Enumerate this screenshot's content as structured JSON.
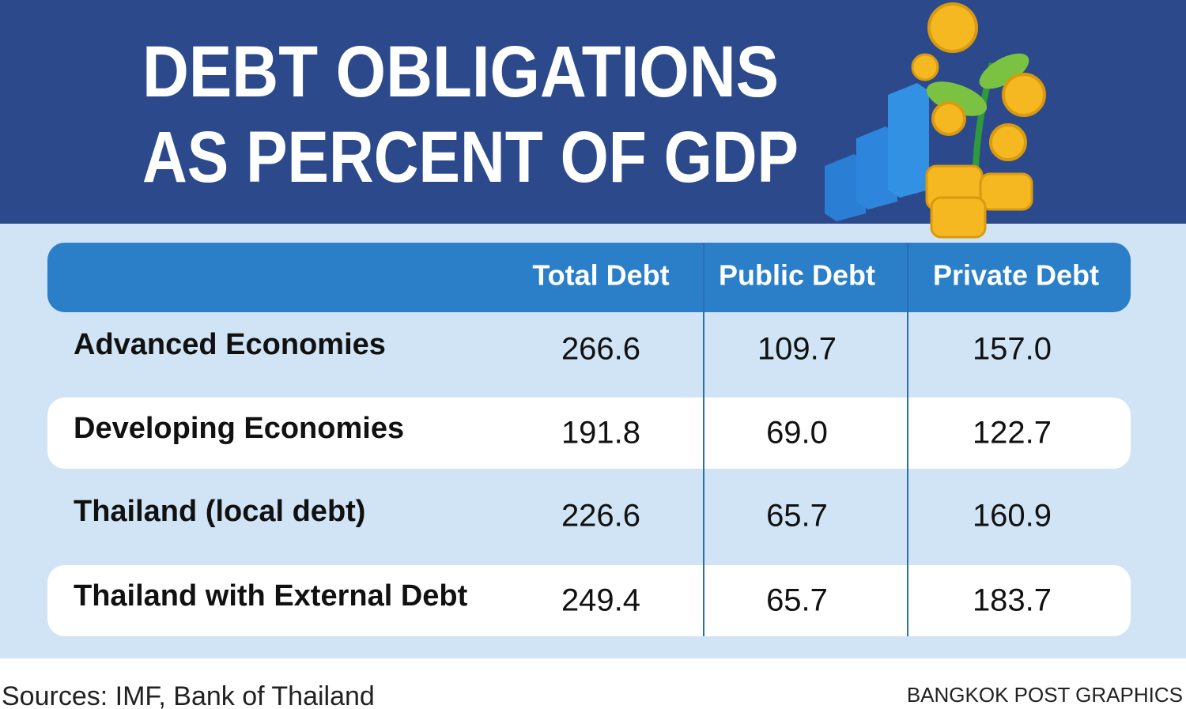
{
  "header": {
    "title_lines": [
      "DEBT OBLIGATIONS",
      "AS PERCENT OF GDP"
    ]
  },
  "table": {
    "columns": [
      "Total Debt",
      "Public Debt",
      "Private Debt"
    ],
    "rows": [
      {
        "label": "Advanced Economies",
        "cells": [
          "266.6",
          "109.7",
          "157.0"
        ]
      },
      {
        "label": "Developing Economies",
        "cells": [
          "191.8",
          "69.0",
          "122.7"
        ]
      },
      {
        "label": "Thailand (local debt)",
        "cells": [
          "226.6",
          "65.7",
          "160.9"
        ]
      },
      {
        "label": "Thailand with External Debt",
        "cells": [
          "249.4",
          "65.7",
          "183.7"
        ]
      }
    ]
  },
  "footer": {
    "source": "Sources: IMF, Bank of Thailand",
    "credit": "BANGKOK POST GRAPHICS"
  }
}
